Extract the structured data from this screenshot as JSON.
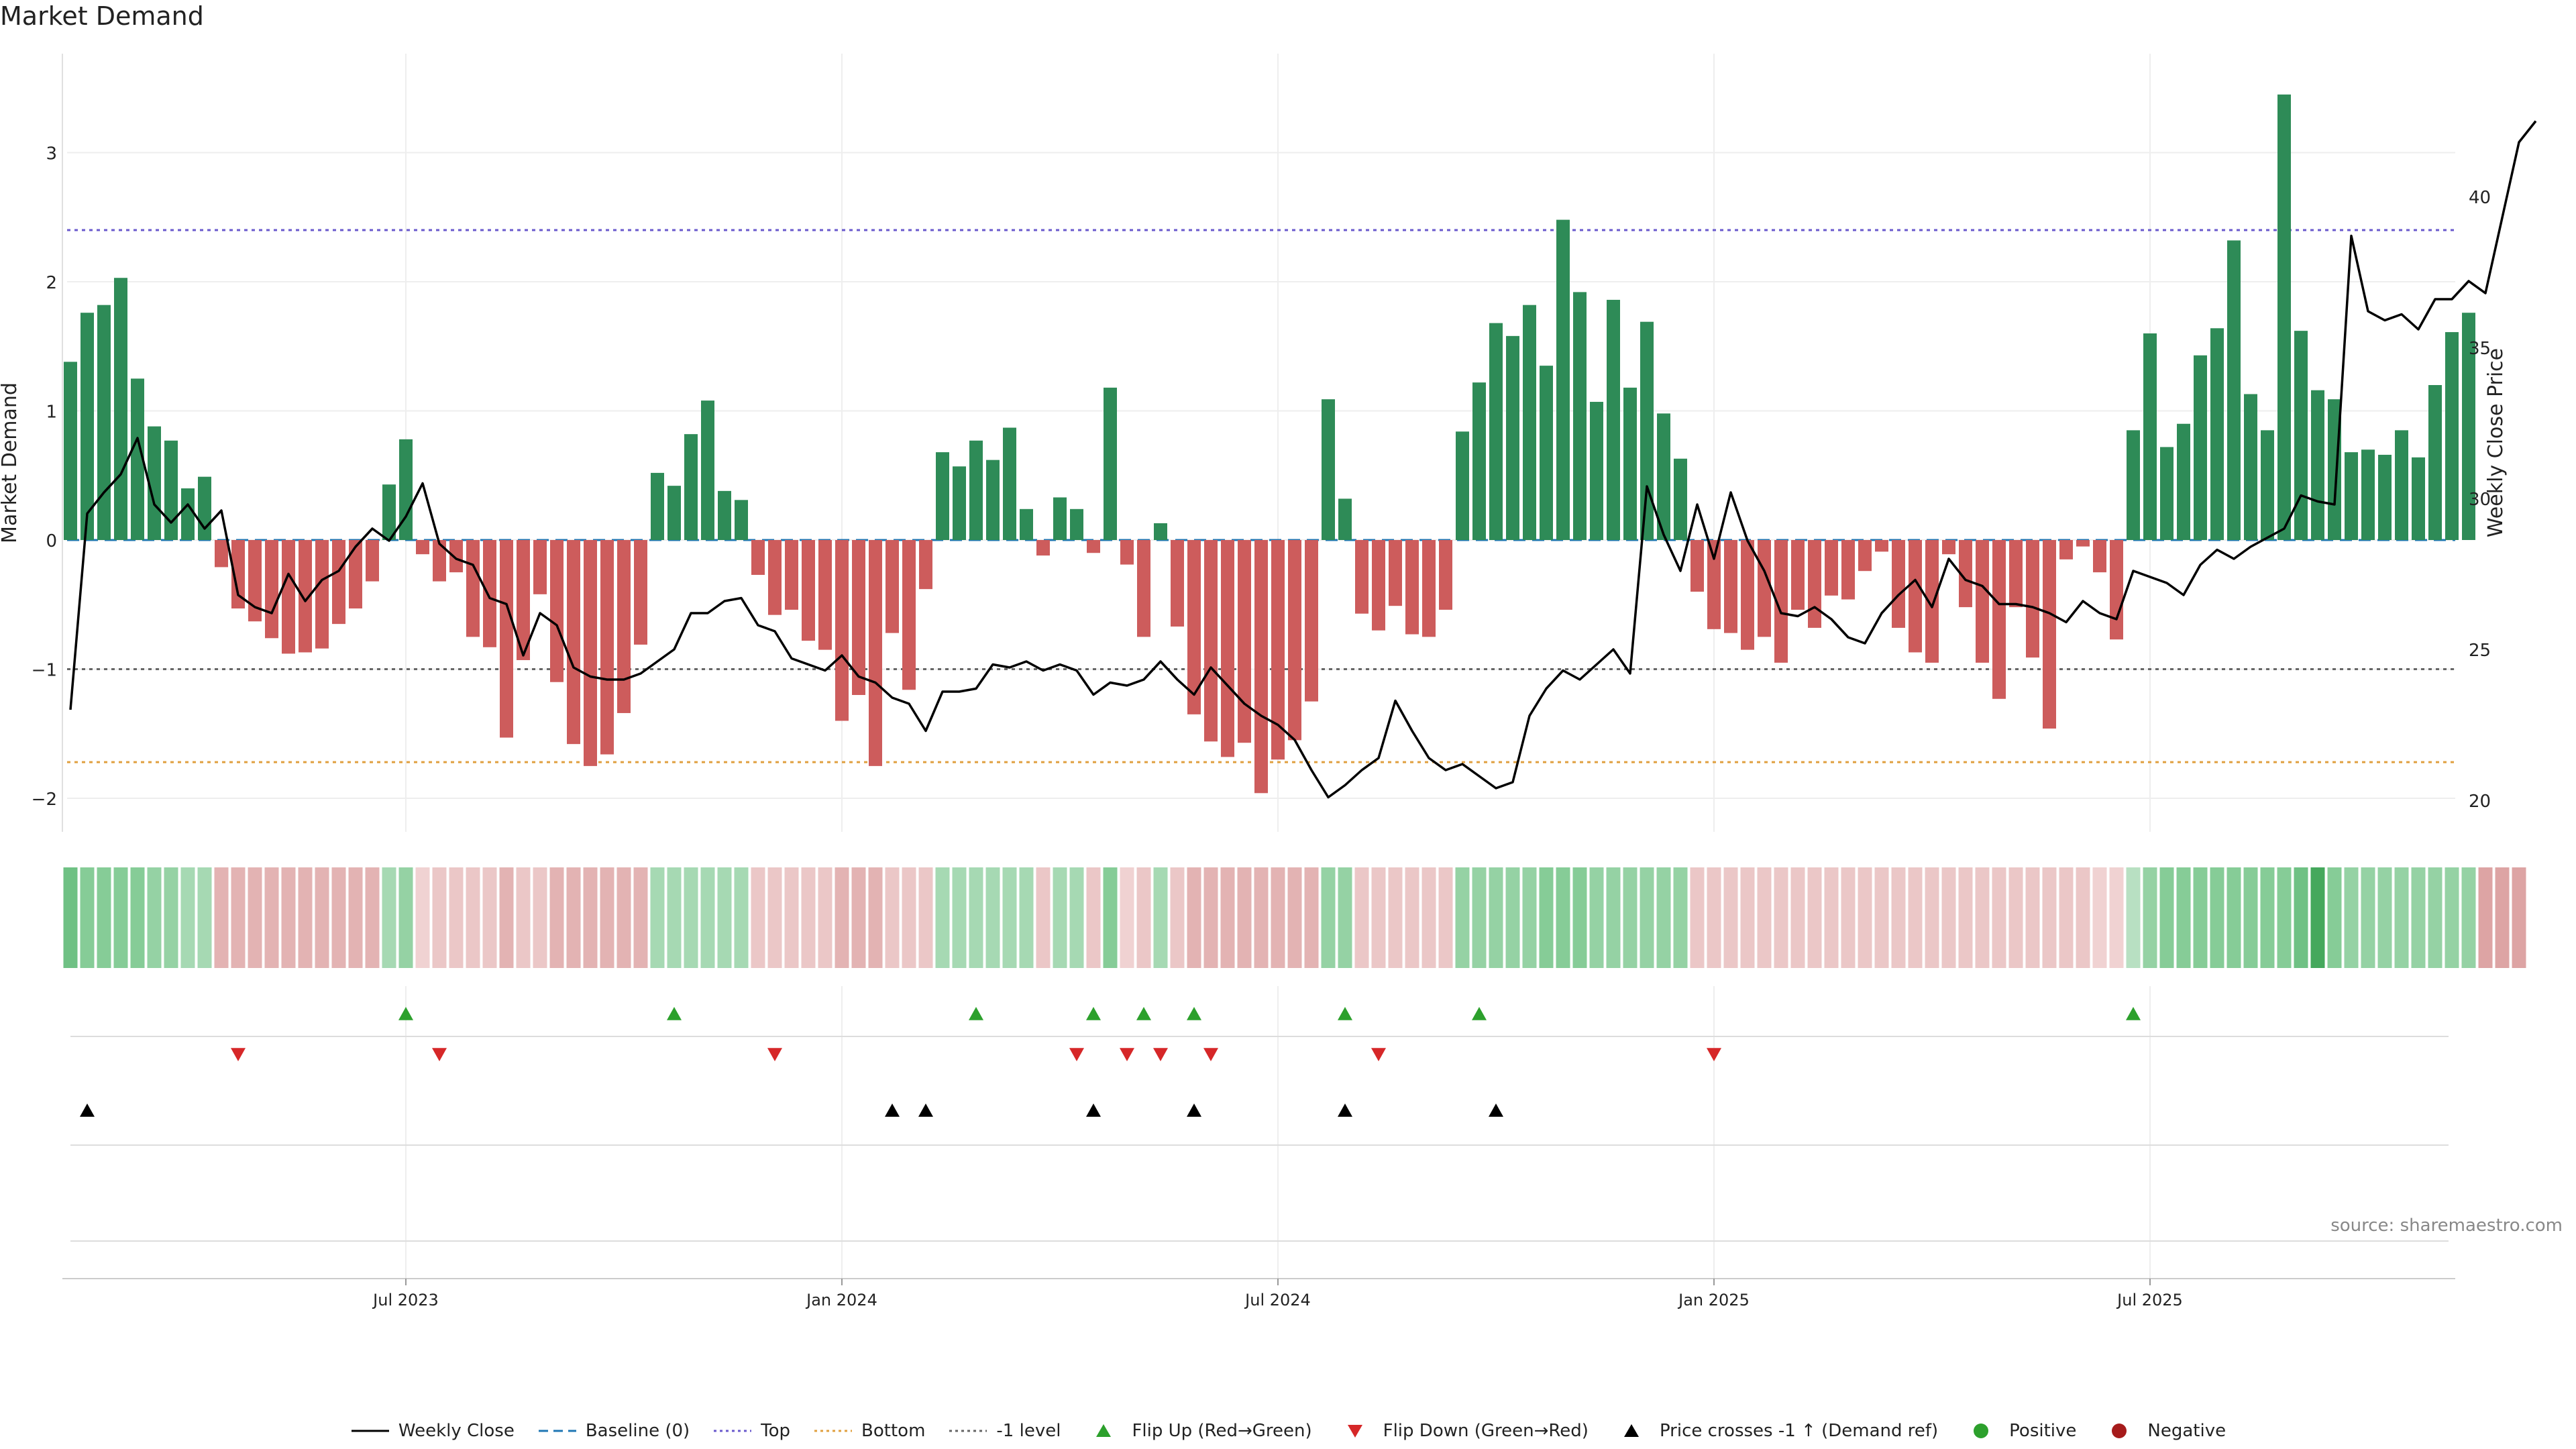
{
  "title": "Market Demand",
  "source": "source: sharemaestro.com",
  "axes": {
    "left_label": "Market Demand",
    "right_label": "Weekly Close Price",
    "left_ticks": [
      "3",
      "2",
      "1",
      "0",
      "−1",
      "−2"
    ],
    "left_tick_values": [
      3,
      2,
      1,
      0,
      -1,
      -2
    ],
    "right_ticks": [
      "40",
      "35",
      "30",
      "25",
      "20"
    ],
    "right_tick_values": [
      40,
      35,
      30,
      25,
      20
    ],
    "date_ticks": [
      "Jul 2023",
      "Jan 2024",
      "Jul 2024",
      "Jan 2025",
      "Jul 2025"
    ],
    "date_tick_weeks": [
      20,
      46,
      72,
      98,
      124
    ]
  },
  "levels": {
    "top": 2.4,
    "bottom": -1.72,
    "minus_one": -1.0
  },
  "colors": {
    "pos": "#2e8b57",
    "neg": "#cd5c5c",
    "line": "#000000",
    "top": "#6a5acd",
    "bottom": "#e0a040",
    "minus1": "#666666",
    "flip_up": "#2ca02c",
    "flip_down": "#d62728",
    "cross": "#000000",
    "positive_dot": "#2ca02c",
    "negative_dot": "#a61b1b",
    "baseline": "#1f77b4"
  },
  "chart_data": {
    "type": "bar+line",
    "x_unit": "week index (weekly, ~Mar 2023 to Nov 2025)",
    "demand": [
      1.38,
      1.76,
      1.82,
      2.03,
      1.25,
      0.88,
      0.77,
      0.4,
      0.49,
      -0.21,
      -0.53,
      -0.63,
      -0.76,
      -0.88,
      -0.87,
      -0.84,
      -0.65,
      -0.53,
      -0.32,
      0.43,
      0.78,
      -0.11,
      -0.32,
      -0.25,
      -0.75,
      -0.83,
      -1.53,
      -0.93,
      -0.42,
      -1.1,
      -1.58,
      -1.75,
      -1.66,
      -1.34,
      -0.81,
      0.52,
      0.42,
      0.82,
      1.08,
      0.38,
      0.31,
      -0.27,
      -0.58,
      -0.54,
      -0.78,
      -0.85,
      -1.4,
      -1.2,
      -1.75,
      -0.72,
      -1.16,
      -0.38,
      0.68,
      0.57,
      0.77,
      0.62,
      0.87,
      0.24,
      -0.12,
      0.33,
      0.24,
      -0.1,
      1.18,
      -0.19,
      -0.75,
      0.13,
      -0.67,
      -1.35,
      -1.56,
      -1.68,
      -1.57,
      -1.96,
      -1.7,
      -1.55,
      -1.25,
      1.09,
      0.32,
      -0.57,
      -0.7,
      -0.51,
      -0.73,
      -0.75,
      -0.54,
      0.84,
      1.22,
      1.68,
      1.58,
      1.82,
      1.35,
      2.48,
      1.92,
      1.07,
      1.86,
      1.18,
      1.69,
      0.98,
      0.63,
      -0.4,
      -0.69,
      -0.72,
      -0.85,
      -0.75,
      -0.95,
      -0.54,
      -0.68,
      -0.43,
      -0.46,
      -0.24,
      -0.09,
      -0.68,
      -0.87,
      -0.95,
      -0.11,
      -0.52,
      -0.95,
      -1.23,
      -0.52,
      -0.91,
      -1.46,
      -0.15,
      -0.05,
      -0.25,
      -0.77,
      0.85,
      1.6,
      0.72,
      0.9,
      1.43,
      1.64,
      2.32,
      1.13,
      0.85,
      3.45,
      1.62,
      1.16,
      1.09,
      0.68,
      0.7,
      0.66,
      0.85,
      0.64,
      1.2,
      1.61,
      1.76
    ],
    "close": [
      23.0,
      29.5,
      30.2,
      30.8,
      32.0,
      29.8,
      29.2,
      29.8,
      29.0,
      29.6,
      26.8,
      26.4,
      26.2,
      27.5,
      26.6,
      27.3,
      27.6,
      28.4,
      29.0,
      28.6,
      29.4,
      30.5,
      28.5,
      28.0,
      27.8,
      26.7,
      26.5,
      24.8,
      26.2,
      25.8,
      24.4,
      24.1,
      24.0,
      24.0,
      24.2,
      24.6,
      25.0,
      26.2,
      26.2,
      26.6,
      26.7,
      25.8,
      25.6,
      24.7,
      24.5,
      24.3,
      24.8,
      24.1,
      23.9,
      23.4,
      23.2,
      22.3,
      23.6,
      23.6,
      23.7,
      24.5,
      24.4,
      24.6,
      24.3,
      24.5,
      24.3,
      23.5,
      23.9,
      23.8,
      24.0,
      24.6,
      24.0,
      23.5,
      24.4,
      23.8,
      23.2,
      22.8,
      22.5,
      22.0,
      21.0,
      20.1,
      20.5,
      21.0,
      21.4,
      23.3,
      22.3,
      21.4,
      21.0,
      21.2,
      20.8,
      20.4,
      20.6,
      22.8,
      23.7,
      24.3,
      24.0,
      24.5,
      25.0,
      24.2,
      30.4,
      28.8,
      27.6,
      29.8,
      28.0,
      30.2,
      28.6,
      27.6,
      26.2,
      26.1,
      26.4,
      26.0,
      25.4,
      25.2,
      26.2,
      26.8,
      27.3,
      26.4,
      28.0,
      27.3,
      27.1,
      26.5,
      26.5,
      26.4,
      26.2,
      25.9,
      26.6,
      26.2,
      26.0,
      27.6,
      27.4,
      27.2,
      26.8,
      27.8,
      28.3,
      28.0,
      28.4,
      28.7,
      29.0,
      30.1,
      29.9,
      29.8,
      38.7,
      36.2,
      35.9,
      36.1,
      35.6,
      36.6,
      36.6,
      37.2,
      36.8,
      39.3,
      41.8,
      42.5
    ],
    "shade_levels": [
      5,
      4,
      4,
      4,
      4,
      3,
      3,
      2,
      2,
      3,
      3,
      3,
      3,
      3,
      3,
      3,
      3,
      3,
      3,
      2,
      3,
      1,
      2,
      2,
      2,
      2,
      3,
      2,
      2,
      3,
      3,
      3,
      3,
      3,
      3,
      2,
      2,
      2,
      2,
      2,
      2,
      2,
      2,
      2,
      2,
      2,
      3,
      3,
      3,
      2,
      2,
      2,
      2,
      2,
      2,
      2,
      2,
      2,
      2,
      2,
      2,
      2,
      4,
      1,
      2,
      2,
      2,
      3,
      3,
      3,
      3,
      3,
      3,
      3,
      3,
      3,
      3,
      2,
      2,
      2,
      2,
      2,
      2,
      3,
      3,
      3,
      3,
      3,
      4,
      4,
      4,
      3,
      3,
      3,
      3,
      3,
      3,
      2,
      2,
      2,
      2,
      2,
      2,
      2,
      2,
      2,
      2,
      2,
      2,
      2,
      2,
      2,
      2,
      2,
      2,
      2,
      2,
      2,
      2,
      2,
      2,
      1,
      1,
      1,
      3,
      4,
      4,
      4,
      4,
      4,
      4,
      4,
      4,
      5,
      6,
      4,
      3,
      3,
      3,
      3,
      3,
      3,
      3,
      3,
      4,
      4,
      4
    ],
    "flip_up_weeks": [
      20,
      36,
      54,
      61,
      64,
      67,
      76,
      84,
      123
    ],
    "flip_down_weeks": [
      10,
      22,
      42,
      60,
      63,
      65,
      68,
      78,
      98
    ],
    "cross_weeks": [
      1,
      49,
      51,
      61,
      67,
      76,
      85
    ]
  },
  "legend": [
    {
      "label": "Weekly Close",
      "kind": "line"
    },
    {
      "label": "Baseline (0)",
      "kind": "dash"
    },
    {
      "label": "Top",
      "kind": "dot-top"
    },
    {
      "label": "Bottom",
      "kind": "dot-bottom"
    },
    {
      "label": "-1 level",
      "kind": "dot-m1"
    },
    {
      "label": "Flip Up (Red→Green)",
      "kind": "tri-up"
    },
    {
      "label": "Flip Down (Green→Red)",
      "kind": "tri-down"
    },
    {
      "label": "Price crosses -1 ↑ (Demand ref)",
      "kind": "tri-cross"
    },
    {
      "label": "Positive",
      "kind": "dot-pos"
    },
    {
      "label": "Negative",
      "kind": "dot-neg"
    }
  ]
}
